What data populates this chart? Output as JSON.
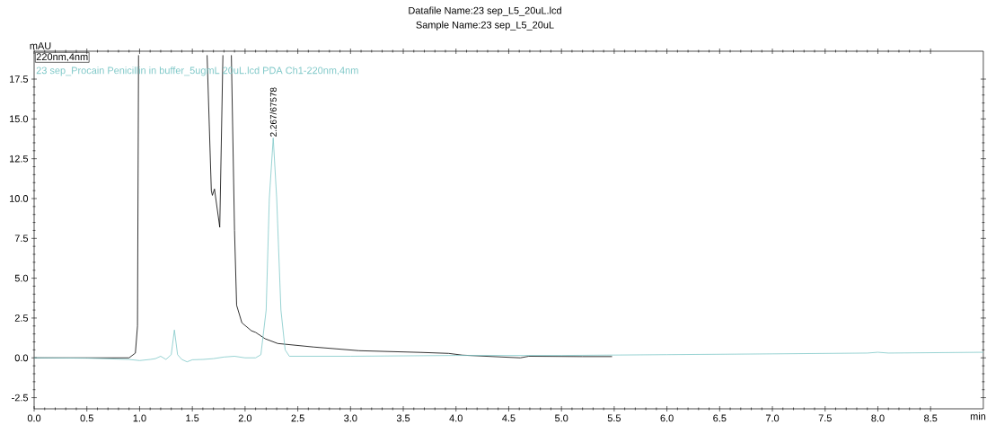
{
  "chart_data": {
    "type": "line",
    "title": "Datafile Name:23 sep_L5_20uL.lcd",
    "subtitle": "Sample Name:23 sep_L5_20uL",
    "xlabel": "min",
    "ylabel": "mAU",
    "xlim": [
      0,
      9.0
    ],
    "ylim": [
      -3.2,
      19.25
    ],
    "xticks": [
      {
        "value": 0,
        "label": "0.0"
      },
      {
        "value": 0.5,
        "label": "0.5"
      },
      {
        "value": 1,
        "label": "1.0"
      },
      {
        "value": 1.5,
        "label": "1.5"
      },
      {
        "value": 2,
        "label": "2.0"
      },
      {
        "value": 2.5,
        "label": "2.5"
      },
      {
        "value": 3,
        "label": "3.0"
      },
      {
        "value": 3.5,
        "label": "3.5"
      },
      {
        "value": 4,
        "label": "4.0"
      },
      {
        "value": 4.5,
        "label": "4.5"
      },
      {
        "value": 5,
        "label": "5.0"
      },
      {
        "value": 5.5,
        "label": "5.5"
      },
      {
        "value": 6,
        "label": "6.0"
      },
      {
        "value": 6.5,
        "label": "6.5"
      },
      {
        "value": 7,
        "label": "7.0"
      },
      {
        "value": 7.5,
        "label": "7.5"
      },
      {
        "value": 8,
        "label": "8.0"
      },
      {
        "value": 8.5,
        "label": "8.5"
      }
    ],
    "yticks": [
      -2.5,
      {
        "value": 0,
        "label": "0.0"
      },
      2.5,
      {
        "value": 5,
        "label": "5.0"
      },
      7.5,
      {
        "value": 10,
        "label": "10.0"
      },
      12.5,
      {
        "value": 15,
        "label": "15.0"
      },
      17.5
    ],
    "legend": "top left",
    "annotations": [
      {
        "text": "2.267/67578",
        "x": 2.267,
        "y": 13.8
      }
    ],
    "series": [
      {
        "name": "220nm,4nm",
        "color": "#000000",
        "x": [
          0,
          0.5,
          0.9,
          0.96,
          0.98,
          0.99,
          1.3,
          1.64,
          1.68,
          1.69,
          1.71,
          1.76,
          1.79,
          1.83,
          1.87,
          1.9,
          1.92,
          1.97,
          2.06,
          2.1,
          2.19,
          2.31,
          2.65,
          3.08,
          3.67,
          3.93,
          4.06,
          4.61,
          4.69,
          5.2,
          5.48
        ],
        "values": [
          0,
          0,
          0,
          0.3,
          2,
          19.0,
          null,
          19.0,
          10.5,
          10.2,
          10.6,
          8.2,
          19.0,
          null,
          19.0,
          8,
          3.3,
          2.2,
          1.7,
          1.6,
          1.2,
          0.9,
          0.68,
          0.45,
          0.34,
          0.28,
          0.17,
          0.0,
          0.1,
          0.08,
          0.08
        ]
      },
      {
        "name": "23 sep_Procain Penicillin in buffer_5ugmL 20uL.lcd PDA Ch1-220nm,4nm",
        "color": "#7fc8c8",
        "x": [
          0,
          0.5,
          0.9,
          1.0,
          1.1,
          1.15,
          1.2,
          1.25,
          1.3,
          1.33,
          1.36,
          1.4,
          1.45,
          1.5,
          1.6,
          1.7,
          1.8,
          1.9,
          2.0,
          2.1,
          2.15,
          2.2,
          2.23,
          2.267,
          2.3,
          2.34,
          2.38,
          2.42,
          3.0,
          4.0,
          5.0,
          6.0,
          7.0,
          7.9,
          8.0,
          8.1,
          9.0
        ],
        "values": [
          0,
          -0.02,
          -0.1,
          -0.17,
          -0.1,
          -0.05,
          0.1,
          -0.1,
          0.2,
          1.75,
          0.2,
          -0.1,
          -0.25,
          -0.12,
          -0.1,
          -0.05,
          0.05,
          0.1,
          0.0,
          0.0,
          0.2,
          3,
          10,
          13.8,
          10,
          3,
          0.5,
          0.1,
          0.1,
          0.15,
          0.15,
          0.2,
          0.25,
          0.3,
          0.35,
          0.3,
          0.35
        ]
      }
    ]
  }
}
